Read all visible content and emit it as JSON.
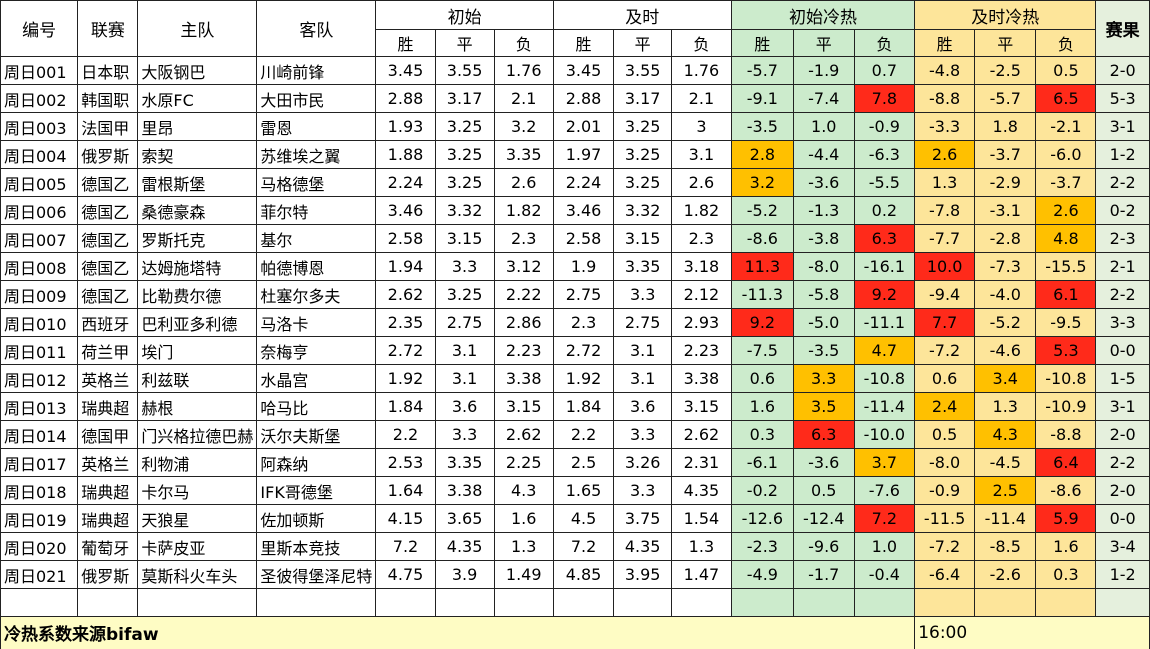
{
  "header": {
    "id_label": "编号",
    "league_label": "联赛",
    "home_label": "主队",
    "away_label": "客队",
    "initial_label": "初始",
    "live_label": "及时",
    "initial_heat_label": "初始冷热",
    "live_heat_label": "及时冷热",
    "result_label": "赛果",
    "win": "胜",
    "draw": "平",
    "lose": "负"
  },
  "colors": {
    "init_heat_bg": "#ccebcc",
    "live_heat_bg": "#fde59a",
    "result_bg": "#e5f0dd",
    "hot_red": "#ff2a1a",
    "hot_orange": "#ffc000",
    "footer_bg": "#fefcc4"
  },
  "rows": [
    {
      "id": "周日001",
      "league": "日本职",
      "home": "大阪钢巴",
      "away": "川崎前锋",
      "init": [
        "3.45",
        "3.55",
        "1.76"
      ],
      "live": [
        "3.45",
        "3.55",
        "1.76"
      ],
      "ih": [
        "-5.7",
        "-1.9",
        "0.7"
      ],
      "lh": [
        "-4.8",
        "-2.5",
        "0.5"
      ],
      "result": "2-0",
      "ihl": [
        "",
        "",
        ""
      ],
      "lhl": [
        "",
        "",
        ""
      ]
    },
    {
      "id": "周日002",
      "league": "韩国职",
      "home": "水原FC",
      "away": "大田市民",
      "init": [
        "2.88",
        "3.17",
        "2.1"
      ],
      "live": [
        "2.88",
        "3.17",
        "2.1"
      ],
      "ih": [
        "-9.1",
        "-7.4",
        "7.8"
      ],
      "lh": [
        "-8.8",
        "-5.7",
        "6.5"
      ],
      "result": "5-3",
      "ihl": [
        "",
        "",
        "red"
      ],
      "lhl": [
        "",
        "",
        "red"
      ]
    },
    {
      "id": "周日003",
      "league": "法国甲",
      "home": "里昂",
      "away": "雷恩",
      "init": [
        "1.93",
        "3.25",
        "3.2"
      ],
      "live": [
        "2.01",
        "3.25",
        "3"
      ],
      "ih": [
        "-3.5",
        "1.0",
        "-0.9"
      ],
      "lh": [
        "-3.3",
        "1.8",
        "-2.1"
      ],
      "result": "3-1",
      "ihl": [
        "",
        "",
        ""
      ],
      "lhl": [
        "",
        "",
        ""
      ]
    },
    {
      "id": "周日004",
      "league": "俄罗斯",
      "home": "索契",
      "away": "苏维埃之翼",
      "init": [
        "1.88",
        "3.25",
        "3.35"
      ],
      "live": [
        "1.97",
        "3.25",
        "3.1"
      ],
      "ih": [
        "2.8",
        "-4.4",
        "-6.3"
      ],
      "lh": [
        "2.6",
        "-3.7",
        "-6.0"
      ],
      "result": "1-2",
      "ihl": [
        "orange",
        "",
        ""
      ],
      "lhl": [
        "orange",
        "",
        ""
      ]
    },
    {
      "id": "周日005",
      "league": "德国乙",
      "home": "雷根斯堡",
      "away": "马格德堡",
      "init": [
        "2.24",
        "3.25",
        "2.6"
      ],
      "live": [
        "2.24",
        "3.25",
        "2.6"
      ],
      "ih": [
        "3.2",
        "-3.6",
        "-5.5"
      ],
      "lh": [
        "1.3",
        "-2.9",
        "-3.7"
      ],
      "result": "2-2",
      "ihl": [
        "orange",
        "",
        ""
      ],
      "lhl": [
        "",
        "",
        ""
      ]
    },
    {
      "id": "周日006",
      "league": "德国乙",
      "home": "桑德豪森",
      "away": "菲尔特",
      "init": [
        "3.46",
        "3.32",
        "1.82"
      ],
      "live": [
        "3.46",
        "3.32",
        "1.82"
      ],
      "ih": [
        "-5.2",
        "-1.3",
        "0.2"
      ],
      "lh": [
        "-7.8",
        "-3.1",
        "2.6"
      ],
      "result": "0-2",
      "ihl": [
        "",
        "",
        ""
      ],
      "lhl": [
        "",
        "",
        "orange"
      ]
    },
    {
      "id": "周日007",
      "league": "德国乙",
      "home": "罗斯托克",
      "away": "基尔",
      "init": [
        "2.58",
        "3.15",
        "2.3"
      ],
      "live": [
        "2.58",
        "3.15",
        "2.3"
      ],
      "ih": [
        "-8.6",
        "-3.8",
        "6.3"
      ],
      "lh": [
        "-7.7",
        "-2.8",
        "4.8"
      ],
      "result": "2-3",
      "ihl": [
        "",
        "",
        "red"
      ],
      "lhl": [
        "",
        "",
        "orange"
      ]
    },
    {
      "id": "周日008",
      "league": "德国乙",
      "home": "达姆施塔特",
      "away": "帕德博恩",
      "init": [
        "1.94",
        "3.3",
        "3.12"
      ],
      "live": [
        "1.9",
        "3.35",
        "3.18"
      ],
      "ih": [
        "11.3",
        "-8.0",
        "-16.1"
      ],
      "lh": [
        "10.0",
        "-7.3",
        "-15.5"
      ],
      "result": "2-1",
      "ihl": [
        "red",
        "",
        ""
      ],
      "lhl": [
        "red",
        "",
        ""
      ]
    },
    {
      "id": "周日009",
      "league": "德国乙",
      "home": "比勒费尔德",
      "away": "杜塞尔多夫",
      "init": [
        "2.62",
        "3.25",
        "2.22"
      ],
      "live": [
        "2.75",
        "3.3",
        "2.12"
      ],
      "ih": [
        "-11.3",
        "-5.8",
        "9.2"
      ],
      "lh": [
        "-9.4",
        "-4.0",
        "6.1"
      ],
      "result": "2-2",
      "ihl": [
        "",
        "",
        "red"
      ],
      "lhl": [
        "",
        "",
        "red"
      ]
    },
    {
      "id": "周日010",
      "league": "西班牙",
      "home": "巴利亚多利德",
      "away": "马洛卡",
      "init": [
        "2.35",
        "2.75",
        "2.86"
      ],
      "live": [
        "2.3",
        "2.75",
        "2.93"
      ],
      "ih": [
        "9.2",
        "-5.0",
        "-11.1"
      ],
      "lh": [
        "7.7",
        "-5.2",
        "-9.5"
      ],
      "result": "3-3",
      "ihl": [
        "red",
        "",
        ""
      ],
      "lhl": [
        "red",
        "",
        ""
      ]
    },
    {
      "id": "周日011",
      "league": "荷兰甲",
      "home": "埃门",
      "away": "奈梅亨",
      "init": [
        "2.72",
        "3.1",
        "2.23"
      ],
      "live": [
        "2.72",
        "3.1",
        "2.23"
      ],
      "ih": [
        "-7.5",
        "-3.5",
        "4.7"
      ],
      "lh": [
        "-7.2",
        "-4.6",
        "5.3"
      ],
      "result": "0-0",
      "ihl": [
        "",
        "",
        "orange"
      ],
      "lhl": [
        "",
        "",
        "red"
      ]
    },
    {
      "id": "周日012",
      "league": "英格兰",
      "home": "利兹联",
      "away": "水晶宫",
      "init": [
        "1.92",
        "3.1",
        "3.38"
      ],
      "live": [
        "1.92",
        "3.1",
        "3.38"
      ],
      "ih": [
        "0.6",
        "3.3",
        "-10.8"
      ],
      "lh": [
        "0.6",
        "3.4",
        "-10.8"
      ],
      "result": "1-5",
      "ihl": [
        "",
        "orange",
        ""
      ],
      "lhl": [
        "",
        "orange",
        ""
      ]
    },
    {
      "id": "周日013",
      "league": "瑞典超",
      "home": "赫根",
      "away": "哈马比",
      "init": [
        "1.84",
        "3.6",
        "3.15"
      ],
      "live": [
        "1.84",
        "3.6",
        "3.15"
      ],
      "ih": [
        "1.6",
        "3.5",
        "-11.4"
      ],
      "lh": [
        "2.4",
        "1.3",
        "-10.9"
      ],
      "result": "3-1",
      "ihl": [
        "",
        "orange",
        ""
      ],
      "lhl": [
        "orange",
        "",
        ""
      ]
    },
    {
      "id": "周日014",
      "league": "德国甲",
      "home": "门兴格拉德巴赫",
      "away": "沃尔夫斯堡",
      "init": [
        "2.2",
        "3.3",
        "2.62"
      ],
      "live": [
        "2.2",
        "3.3",
        "2.62"
      ],
      "ih": [
        "0.3",
        "6.3",
        "-10.0"
      ],
      "lh": [
        "0.5",
        "4.3",
        "-8.8"
      ],
      "result": "2-0",
      "ihl": [
        "",
        "red",
        ""
      ],
      "lhl": [
        "",
        "orange",
        ""
      ]
    },
    {
      "id": "周日017",
      "league": "英格兰",
      "home": "利物浦",
      "away": "阿森纳",
      "init": [
        "2.53",
        "3.35",
        "2.25"
      ],
      "live": [
        "2.5",
        "3.26",
        "2.31"
      ],
      "ih": [
        "-6.1",
        "-3.6",
        "3.7"
      ],
      "lh": [
        "-8.0",
        "-4.5",
        "6.4"
      ],
      "result": "2-2",
      "ihl": [
        "",
        "",
        "orange"
      ],
      "lhl": [
        "",
        "",
        "red"
      ]
    },
    {
      "id": "周日018",
      "league": "瑞典超",
      "home": "卡尔马",
      "away": "IFK哥德堡",
      "init": [
        "1.64",
        "3.38",
        "4.3"
      ],
      "live": [
        "1.65",
        "3.3",
        "4.35"
      ],
      "ih": [
        "-0.2",
        "0.5",
        "-7.6"
      ],
      "lh": [
        "-0.9",
        "2.5",
        "-8.6"
      ],
      "result": "2-0",
      "ihl": [
        "",
        "",
        ""
      ],
      "lhl": [
        "",
        "orange",
        ""
      ]
    },
    {
      "id": "周日019",
      "league": "瑞典超",
      "home": "天狼星",
      "away": "佐加顿斯",
      "init": [
        "4.15",
        "3.65",
        "1.6"
      ],
      "live": [
        "4.5",
        "3.75",
        "1.54"
      ],
      "ih": [
        "-12.6",
        "-12.4",
        "7.2"
      ],
      "lh": [
        "-11.5",
        "-11.4",
        "5.9"
      ],
      "result": "0-0",
      "ihl": [
        "",
        "",
        "red"
      ],
      "lhl": [
        "",
        "",
        "red"
      ]
    },
    {
      "id": "周日020",
      "league": "葡萄牙",
      "home": "卡萨皮亚",
      "away": "里斯本竞技",
      "init": [
        "7.2",
        "4.35",
        "1.3"
      ],
      "live": [
        "7.2",
        "4.35",
        "1.3"
      ],
      "ih": [
        "-2.3",
        "-9.6",
        "1.0"
      ],
      "lh": [
        "-7.2",
        "-8.5",
        "1.6"
      ],
      "result": "3-4",
      "ihl": [
        "",
        "",
        ""
      ],
      "lhl": [
        "",
        "",
        ""
      ]
    },
    {
      "id": "周日021",
      "league": "俄罗斯",
      "home": "莫斯科火车头",
      "away": "圣彼得堡泽尼特",
      "init": [
        "4.75",
        "3.9",
        "1.49"
      ],
      "live": [
        "4.85",
        "3.95",
        "1.47"
      ],
      "ih": [
        "-4.9",
        "-1.7",
        "-0.4"
      ],
      "lh": [
        "-6.4",
        "-2.6",
        "0.3"
      ],
      "result": "1-2",
      "ihl": [
        "",
        "",
        ""
      ],
      "lhl": [
        "",
        "",
        ""
      ]
    }
  ],
  "footer": {
    "source_note": "冷热系数来源bifaw",
    "time": "16:00"
  }
}
